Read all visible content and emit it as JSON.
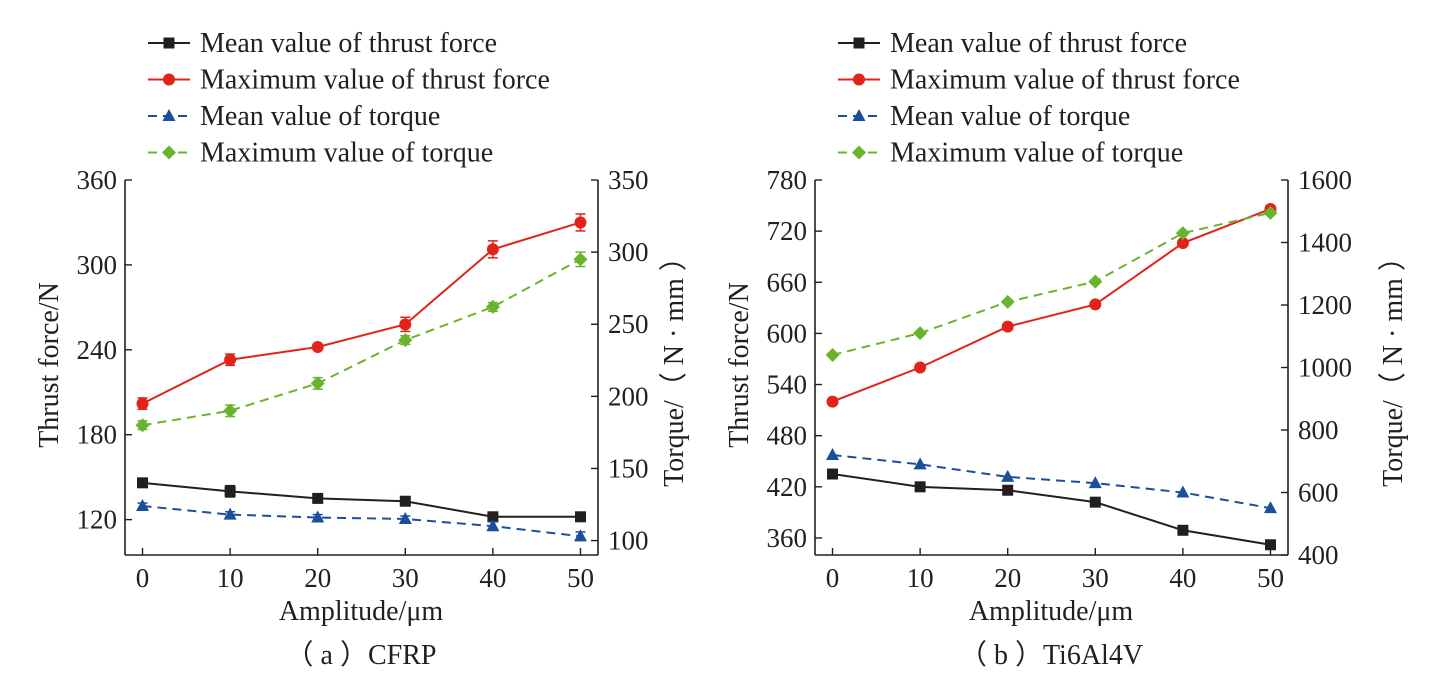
{
  "chart_data": [
    {
      "type": "line",
      "caption": "（ a ）CFRP",
      "xlabel": "Amplitude/μm",
      "ylabel": "Thrust force/N",
      "y2label": "Torque/（ N · mm ）",
      "x": [
        0,
        10,
        20,
        30,
        40,
        50
      ],
      "xlim": [
        -2,
        52
      ],
      "ylim": [
        95,
        360
      ],
      "y2lim": [
        90,
        350
      ],
      "xticks": [
        "0",
        "10",
        "20",
        "30",
        "40",
        "50"
      ],
      "yticks": [
        "120",
        "180",
        "240",
        "300",
        "360"
      ],
      "y2ticks": [
        "100",
        "150",
        "200",
        "250",
        "300",
        "350"
      ],
      "legend_position": "top-left",
      "series": [
        {
          "name": "Mean value of thrust force",
          "axis": "left",
          "values": [
            146,
            140,
            135,
            133,
            122,
            122
          ],
          "errors": [
            0,
            4,
            0,
            3,
            0,
            0
          ],
          "color": "#231f20",
          "marker": "square",
          "dash": "solid"
        },
        {
          "name": "Maximum value of thrust force",
          "axis": "left",
          "values": [
            202,
            233,
            242,
            258,
            311,
            330
          ],
          "errors": [
            4,
            4,
            0,
            5,
            6,
            6
          ],
          "color": "#e2231a",
          "marker": "circle",
          "dash": "solid"
        },
        {
          "name": "Mean value of torque",
          "axis": "right",
          "values": [
            124,
            118,
            116,
            115,
            110,
            103
          ],
          "errors": [
            2,
            2,
            2,
            2,
            3,
            3
          ],
          "color": "#1b4f9c",
          "marker": "triangle",
          "dash": "dashed"
        },
        {
          "name": "Maximum value of torque",
          "axis": "right",
          "values": [
            180,
            190,
            209,
            239,
            262,
            295
          ],
          "errors": [
            3,
            4,
            4,
            3,
            3,
            5
          ],
          "color": "#6ab42d",
          "marker": "diamond",
          "dash": "dashed"
        }
      ]
    },
    {
      "type": "line",
      "caption": "（ b ）Ti6Al4V",
      "xlabel": "Amplitude/μm",
      "ylabel": "Thrust force/N",
      "y2label": "Torque/（ N · mm ）",
      "x": [
        0,
        10,
        20,
        30,
        40,
        50
      ],
      "xlim": [
        -2,
        52
      ],
      "ylim": [
        340,
        780
      ],
      "y2lim": [
        400,
        1600
      ],
      "xticks": [
        "0",
        "10",
        "20",
        "30",
        "40",
        "50"
      ],
      "yticks": [
        "360",
        "420",
        "480",
        "540",
        "600",
        "660",
        "720",
        "780"
      ],
      "y2ticks": [
        "400",
        "600",
        "800",
        "1000",
        "1200",
        "1400",
        "1600"
      ],
      "legend_position": "top-left",
      "series": [
        {
          "name": "Mean value of thrust force",
          "axis": "left",
          "values": [
            435,
            420,
            416,
            402,
            369,
            352
          ],
          "errors": [
            0,
            0,
            0,
            0,
            0,
            0
          ],
          "color": "#231f20",
          "marker": "square",
          "dash": "solid"
        },
        {
          "name": "Maximum value of thrust force",
          "axis": "left",
          "values": [
            520,
            560,
            608,
            634,
            706,
            746
          ],
          "errors": [
            0,
            0,
            0,
            0,
            0,
            0
          ],
          "color": "#e2231a",
          "marker": "circle",
          "dash": "solid"
        },
        {
          "name": "Mean value of torque",
          "axis": "right",
          "values": [
            720,
            690,
            650,
            630,
            600,
            550
          ],
          "errors": [
            0,
            0,
            0,
            0,
            0,
            0
          ],
          "color": "#1b4f9c",
          "marker": "triangle",
          "dash": "dashed"
        },
        {
          "name": "Maximum value of torque",
          "axis": "right",
          "values": [
            1040,
            1110,
            1210,
            1275,
            1430,
            1495
          ],
          "errors": [
            0,
            0,
            0,
            0,
            0,
            0
          ],
          "color": "#6ab42d",
          "marker": "diamond",
          "dash": "dashed"
        }
      ]
    }
  ]
}
